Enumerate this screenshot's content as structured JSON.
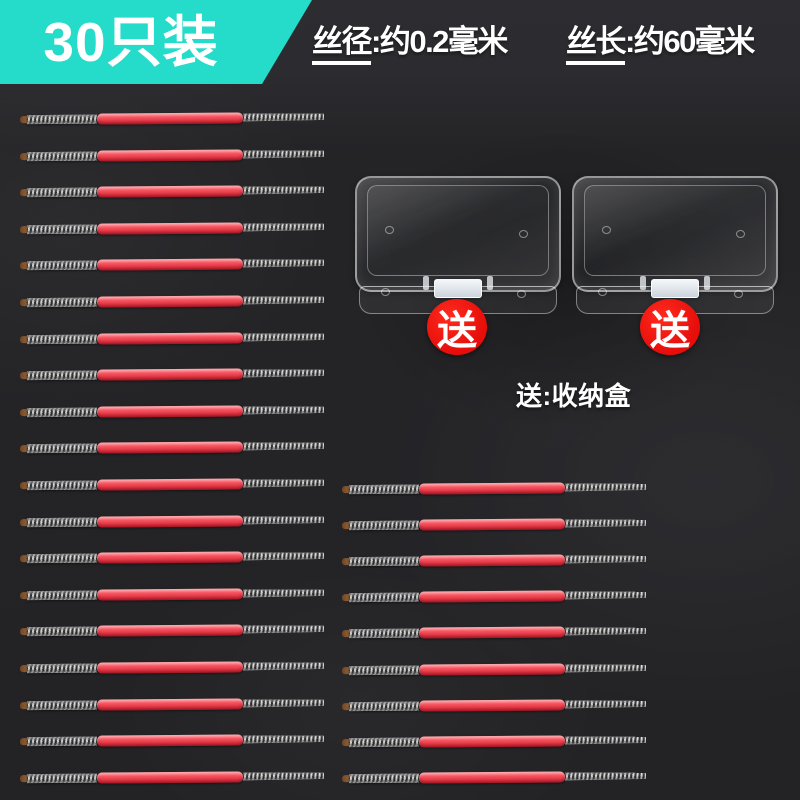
{
  "pack_badge": {
    "label": "30只装"
  },
  "specs": [
    {
      "underlined": "丝径",
      "rest": ":约0.2毫米"
    },
    {
      "underlined": "丝长",
      "rest": ":约60毫米"
    }
  ],
  "gift": {
    "badge_label": "送",
    "caption": "送:收纳盒",
    "box_count": 2
  },
  "wires": {
    "left_count": 19,
    "right_count": 9,
    "description": "steel braided wire with red sleeve"
  },
  "colors": {
    "accent_teal": "#24dcc9",
    "badge_red": "#e60d0a",
    "sleeve_red": "#f4505c",
    "background": "#242427",
    "text": "#ffffff"
  }
}
